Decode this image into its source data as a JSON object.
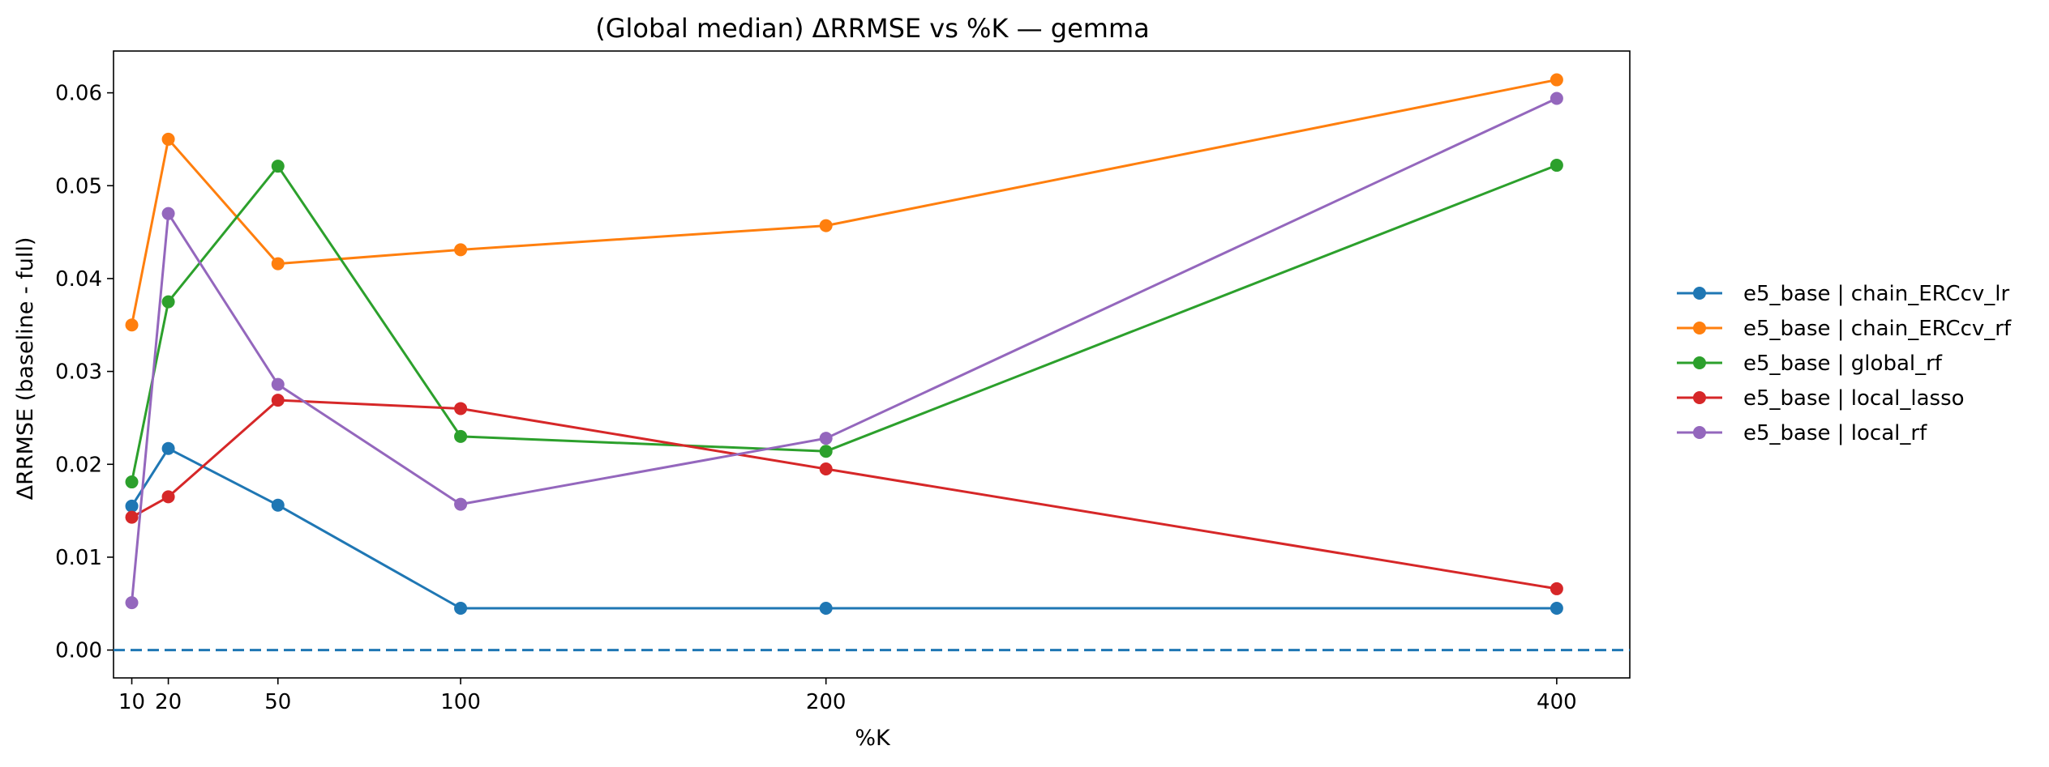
{
  "chart_data": {
    "type": "line",
    "title": "(Global median) ΔRRMSE vs %K — gemma",
    "xlabel": "%K",
    "ylabel": "ΔRRMSE (baseline - full)",
    "x": [
      10,
      20,
      50,
      100,
      200,
      400
    ],
    "xticks": [
      10,
      20,
      50,
      100,
      200,
      400
    ],
    "xlim": [
      5,
      420
    ],
    "ylim": [
      -0.003,
      0.0645
    ],
    "yticks": [
      0.0,
      0.01,
      0.02,
      0.03,
      0.04,
      0.05,
      0.06
    ],
    "ytick_labels": [
      "0.00",
      "0.01",
      "0.02",
      "0.03",
      "0.04",
      "0.05",
      "0.06"
    ],
    "grid": false,
    "legend_position": "right, outside plot",
    "reference_line": {
      "y": 0.0,
      "style": "dashed",
      "color": "#1f77b4"
    },
    "series": [
      {
        "name": "e5_base | chain_ERCcv_lr",
        "color": "#1f77b4",
        "values": [
          0.0155,
          0.0217,
          0.0156,
          0.0045,
          0.0045,
          0.0045
        ]
      },
      {
        "name": "e5_base | chain_ERCcv_rf",
        "color": "#ff7f0e",
        "values": [
          0.035,
          0.055,
          0.0416,
          0.0431,
          0.0457,
          0.0614
        ]
      },
      {
        "name": "e5_base | global_rf",
        "color": "#2ca02c",
        "values": [
          0.0181,
          0.0375,
          0.0521,
          0.023,
          0.0214,
          0.0522
        ]
      },
      {
        "name": "e5_base | local_lasso",
        "color": "#d62728",
        "values": [
          0.0143,
          0.0165,
          0.0269,
          0.026,
          0.0195,
          0.0066
        ]
      },
      {
        "name": "e5_base | local_rf",
        "color": "#9467bd",
        "values": [
          0.0051,
          0.047,
          0.0286,
          0.0157,
          0.0228,
          0.0594
        ]
      }
    ]
  }
}
